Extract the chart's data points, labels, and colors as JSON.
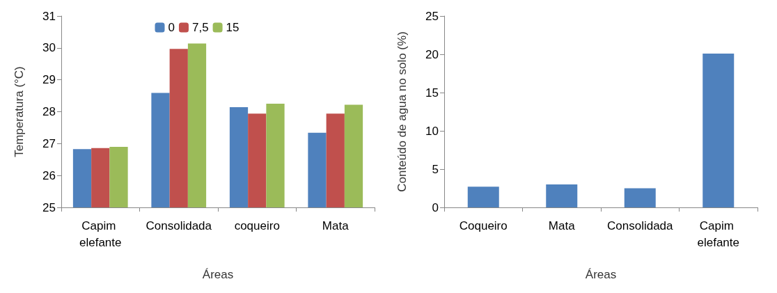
{
  "chart_data": [
    {
      "type": "bar",
      "xlabel": "Áreas",
      "ylabel": "Temperatura (°C)",
      "categories": [
        "Capim elefante",
        "Consolidada",
        "coqueiro",
        "Mata"
      ],
      "series": [
        {
          "name": "0",
          "color": "#4f81bd",
          "values": [
            26.83,
            28.59,
            28.14,
            27.34
          ]
        },
        {
          "name": "7,5",
          "color": "#c0504d",
          "values": [
            26.86,
            29.97,
            27.94,
            27.94
          ]
        },
        {
          "name": "15",
          "color": "#9bbb59",
          "values": [
            26.9,
            30.14,
            28.25,
            28.22
          ]
        }
      ],
      "ylim": [
        25,
        31
      ],
      "yticks": [
        25,
        26,
        27,
        28,
        29,
        30,
        31
      ],
      "grid": false,
      "legend": "top"
    },
    {
      "type": "bar",
      "xlabel": "Áreas",
      "ylabel": "Conteúdo de agua no solo (%)",
      "categories": [
        "Coqueiro",
        "Mata",
        "Consolidada",
        "Capim elefante"
      ],
      "series": [
        {
          "color": "#4f81bd",
          "values": [
            2.7,
            3.0,
            2.5,
            20.1
          ]
        }
      ],
      "ylim": [
        0,
        25
      ],
      "yticks": [
        0,
        5,
        10,
        15,
        20,
        25
      ],
      "grid": false,
      "legend": false
    }
  ]
}
